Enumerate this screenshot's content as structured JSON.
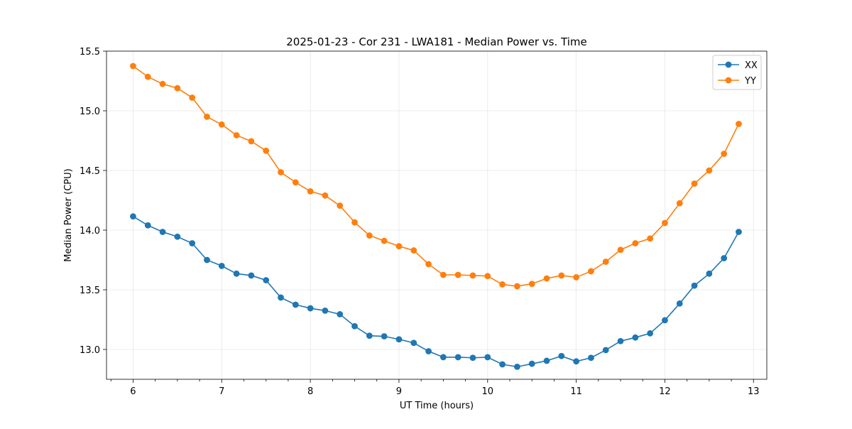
{
  "chart_data": {
    "type": "line",
    "title": "2025-01-23 - Cor 231 - LWA181 - Median Power vs. Time",
    "xlabel": "UT Time (hours)",
    "ylabel": "Median Power (CPU)",
    "xlim": [
      5.7,
      13.15
    ],
    "ylim": [
      12.75,
      15.5
    ],
    "x_major_ticks": [
      6,
      7,
      8,
      9,
      10,
      11,
      12,
      13
    ],
    "x_tick_labels": [
      "6",
      "7",
      "8",
      "9",
      "10",
      "11",
      "12",
      "13"
    ],
    "x_minor_ticks": [
      5.75,
      6.25,
      6.5,
      6.75,
      7.25,
      7.5,
      7.75,
      8.25,
      8.5,
      8.75,
      9.25,
      9.5,
      9.75,
      10.25,
      10.5,
      10.75,
      11.25,
      11.5,
      11.75,
      12.25,
      12.5,
      12.75
    ],
    "y_ticks": [
      13.0,
      13.5,
      14.0,
      14.5,
      15.0,
      15.5
    ],
    "y_tick_labels": [
      "13.0",
      "13.5",
      "14.0",
      "14.5",
      "15.0",
      "15.5"
    ],
    "grid": true,
    "legend_position": "top-right",
    "x": [
      6.0,
      6.1667,
      6.3333,
      6.5,
      6.6667,
      6.8333,
      7.0,
      7.1667,
      7.3333,
      7.5,
      7.6667,
      7.8333,
      8.0,
      8.1667,
      8.3333,
      8.5,
      8.6667,
      8.8333,
      9.0,
      9.1667,
      9.3333,
      9.5,
      9.6667,
      9.8333,
      10.0,
      10.1667,
      10.3333,
      10.5,
      10.6667,
      10.8333,
      11.0,
      11.1667,
      11.3333,
      11.5,
      11.6667,
      11.8333,
      12.0,
      12.1667,
      12.3333,
      12.5,
      12.6667,
      12.8333
    ],
    "series": [
      {
        "name": "XX",
        "color": "#1f77b4",
        "values": [
          14.115,
          14.04,
          13.985,
          13.945,
          13.89,
          13.75,
          13.7,
          13.635,
          13.62,
          13.58,
          13.435,
          13.375,
          13.345,
          13.325,
          13.295,
          13.195,
          13.115,
          13.11,
          13.085,
          13.055,
          12.985,
          12.935,
          12.935,
          12.93,
          12.935,
          12.875,
          12.855,
          12.88,
          12.905,
          12.945,
          12.9,
          12.93,
          12.995,
          13.07,
          13.1,
          13.135,
          13.245,
          13.385,
          13.535,
          13.635,
          13.765,
          13.985
        ]
      },
      {
        "name": "YY",
        "color": "#ff7f0e",
        "values": [
          15.375,
          15.285,
          15.225,
          15.19,
          15.11,
          14.95,
          14.885,
          14.795,
          14.745,
          14.665,
          14.485,
          14.4,
          14.325,
          14.29,
          14.205,
          14.065,
          13.955,
          13.91,
          13.865,
          13.83,
          13.715,
          13.625,
          13.625,
          13.62,
          13.615,
          13.545,
          13.53,
          13.55,
          13.595,
          13.62,
          13.605,
          13.655,
          13.735,
          13.835,
          13.89,
          13.93,
          14.06,
          14.225,
          14.39,
          14.5,
          14.64,
          14.89
        ]
      }
    ]
  }
}
